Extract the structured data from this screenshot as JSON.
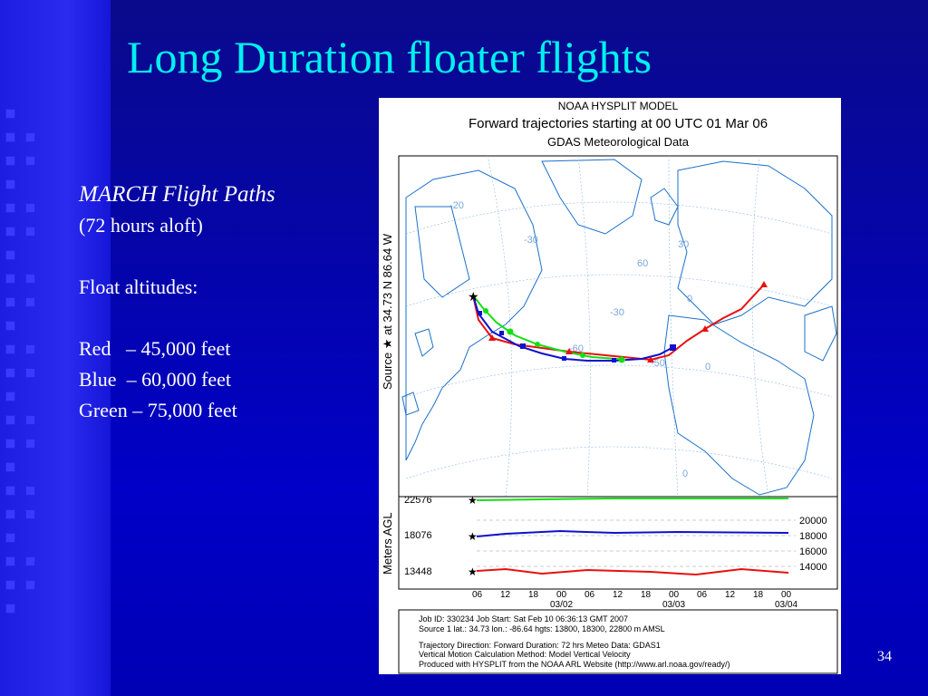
{
  "slide": {
    "title": "Long Duration floater flights",
    "subtitle_italic": "MARCH Flight Paths",
    "subtitle_note": "(72 hours aloft)",
    "float_label": "Float altitudes:",
    "altitudes": [
      {
        "name": "Red",
        "sep": "   – ",
        "value": "45,000 feet"
      },
      {
        "name": "Blue",
        "sep": "  – ",
        "value": "60,000 feet"
      },
      {
        "name": "Green",
        "sep": " – ",
        "value": "75,000 feet"
      }
    ],
    "page_number": "34"
  },
  "figure": {
    "header_line1": "NOAA HYSPLIT MODEL",
    "header_line2": "Forward trajectories starting at 00 UTC 01 Mar 06",
    "header_line3": "GDAS Meteorological Data",
    "side_label": "Source ★ at   34.73 N   86.64 W",
    "map_labels": [
      "60",
      "30",
      "0",
      "-30",
      "-60",
      "0",
      "-20",
      "-30",
      "-50",
      "0"
    ],
    "colors": {
      "red": "#e81010",
      "blue": "#1010d0",
      "green": "#10e010"
    },
    "vertical_panel": {
      "ylabel": "Meters AGL",
      "start_values": [
        "22576",
        "18076",
        "13448"
      ],
      "right_ticks": [
        "20000",
        "18000",
        "16000",
        "14000"
      ]
    },
    "time_axis": {
      "hours": [
        "06",
        "12",
        "18",
        "00",
        "06",
        "12",
        "18",
        "00",
        "06",
        "12",
        "18",
        "00"
      ],
      "dates": [
        "03/02",
        "03/03",
        "03/04"
      ]
    },
    "footer": [
      "Job ID: 330234          Job Start: Sat Feb 10 06:36:13 GMT 2007",
      "Source 1 lat.: 34.73  lon.: -86.64  hgts: 13800, 18300, 22800 m AMSL",
      "Trajectory Direction: Forward    Duration: 72 hrs    Meteo Data: GDAS1",
      "Vertical Motion Calculation Method: Model Vertical Velocity",
      "Produced with HYSPLIT from the NOAA ARL Website (http://www.arl.noaa.gov/ready/)"
    ]
  }
}
